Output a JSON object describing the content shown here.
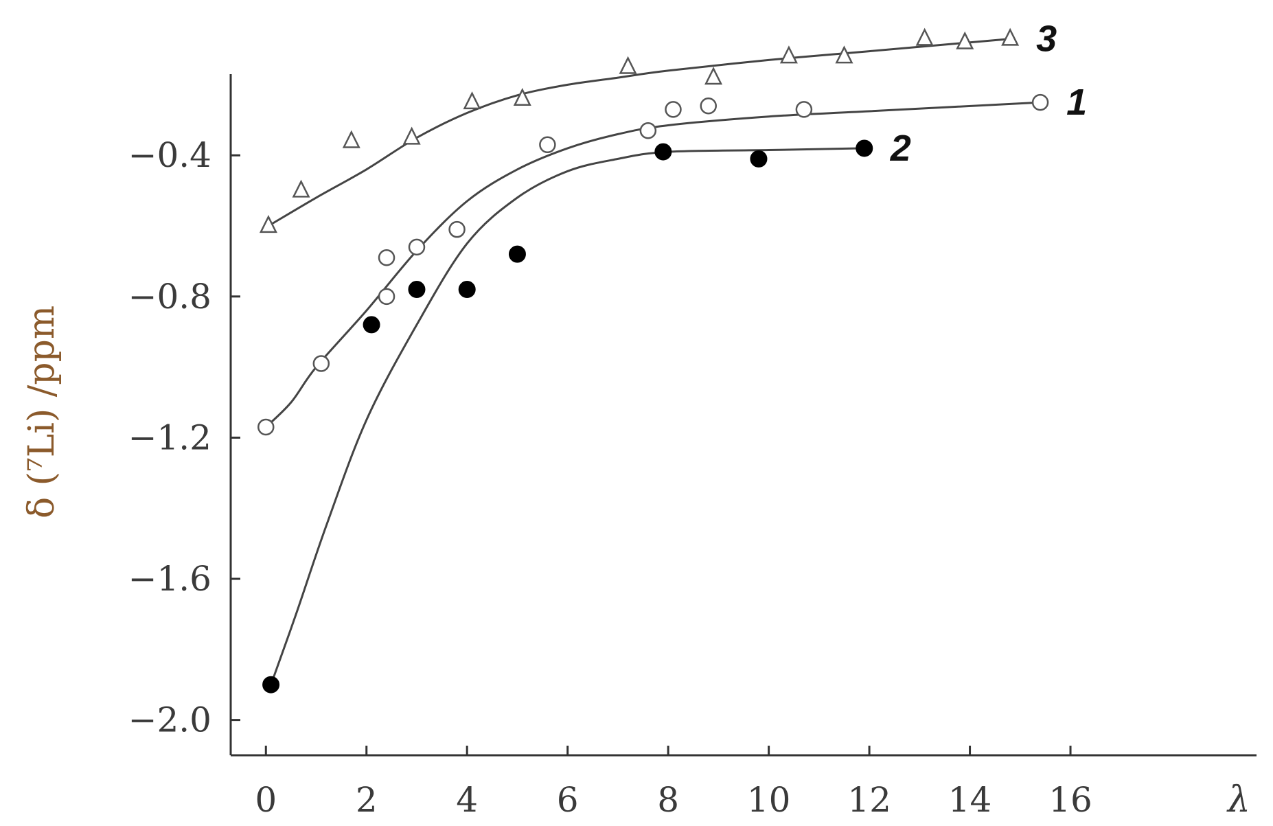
{
  "chart_data": {
    "type": "scatter",
    "xlabel": "λ",
    "ylabel": "δ (⁷Li) /ppm",
    "xlim": [
      -0.7,
      19.7
    ],
    "ylim": [
      -2.1,
      -0.17
    ],
    "xticks": [
      0,
      2,
      4,
      6,
      8,
      10,
      12,
      14,
      16
    ],
    "xtick_labels": [
      "0",
      "2",
      "4",
      "6",
      "8",
      "10",
      "12",
      "14",
      "16"
    ],
    "yticks": [
      -0.4,
      -0.8,
      -1.2,
      -1.6,
      -2.0
    ],
    "ytick_labels": [
      "−0.4",
      "−0.8",
      "−1.2",
      "−1.6",
      "−2.0"
    ],
    "grid": false,
    "series": [
      {
        "name": "1",
        "marker": "open-circle",
        "color": "#333333",
        "points": [
          {
            "x": 0.0,
            "y": -1.17
          },
          {
            "x": 1.1,
            "y": -0.99
          },
          {
            "x": 2.4,
            "y": -0.69
          },
          {
            "x": 2.4,
            "y": -0.8
          },
          {
            "x": 3.0,
            "y": -0.66
          },
          {
            "x": 3.8,
            "y": -0.61
          },
          {
            "x": 5.6,
            "y": -0.37
          },
          {
            "x": 7.6,
            "y": -0.33
          },
          {
            "x": 8.1,
            "y": -0.27
          },
          {
            "x": 8.8,
            "y": -0.26
          },
          {
            "x": 10.7,
            "y": -0.27
          },
          {
            "x": 15.4,
            "y": -0.25
          }
        ],
        "curve": [
          {
            "x": 0.0,
            "y": -1.17
          },
          {
            "x": 0.5,
            "y": -1.1
          },
          {
            "x": 1.0,
            "y": -1.0
          },
          {
            "x": 2.0,
            "y": -0.84
          },
          {
            "x": 3.0,
            "y": -0.67
          },
          {
            "x": 4.0,
            "y": -0.53
          },
          {
            "x": 5.0,
            "y": -0.44
          },
          {
            "x": 6.0,
            "y": -0.38
          },
          {
            "x": 7.0,
            "y": -0.34
          },
          {
            "x": 8.0,
            "y": -0.315
          },
          {
            "x": 10.0,
            "y": -0.29
          },
          {
            "x": 12.0,
            "y": -0.275
          },
          {
            "x": 15.4,
            "y": -0.25
          }
        ]
      },
      {
        "name": "2",
        "marker": "filled-circle",
        "color": "#111111",
        "points": [
          {
            "x": 0.1,
            "y": -1.9
          },
          {
            "x": 2.1,
            "y": -0.88
          },
          {
            "x": 3.0,
            "y": -0.78
          },
          {
            "x": 4.0,
            "y": -0.78
          },
          {
            "x": 5.0,
            "y": -0.68
          },
          {
            "x": 7.9,
            "y": -0.39
          },
          {
            "x": 9.8,
            "y": -0.41
          },
          {
            "x": 11.9,
            "y": -0.38
          }
        ],
        "curve": [
          {
            "x": 0.1,
            "y": -1.9
          },
          {
            "x": 0.6,
            "y": -1.7
          },
          {
            "x": 1.2,
            "y": -1.45
          },
          {
            "x": 2.0,
            "y": -1.15
          },
          {
            "x": 3.0,
            "y": -0.88
          },
          {
            "x": 4.0,
            "y": -0.65
          },
          {
            "x": 5.0,
            "y": -0.52
          },
          {
            "x": 6.0,
            "y": -0.445
          },
          {
            "x": 7.0,
            "y": -0.41
          },
          {
            "x": 8.0,
            "y": -0.39
          },
          {
            "x": 10.0,
            "y": -0.385
          },
          {
            "x": 11.9,
            "y": -0.38
          }
        ]
      },
      {
        "name": "3",
        "marker": "open-triangle",
        "color": "#333333",
        "points": [
          {
            "x": 0.05,
            "y": -0.6
          },
          {
            "x": 0.7,
            "y": -0.5
          },
          {
            "x": 1.7,
            "y": -0.36
          },
          {
            "x": 2.9,
            "y": -0.35
          },
          {
            "x": 4.1,
            "y": -0.25
          },
          {
            "x": 5.1,
            "y": -0.24
          },
          {
            "x": 7.2,
            "y": -0.15
          },
          {
            "x": 8.9,
            "y": -0.18
          },
          {
            "x": 10.4,
            "y": -0.12
          },
          {
            "x": 11.5,
            "y": -0.12
          },
          {
            "x": 13.1,
            "y": -0.07
          },
          {
            "x": 13.9,
            "y": -0.08
          },
          {
            "x": 14.8,
            "y": -0.07
          }
        ],
        "curve": [
          {
            "x": 0.05,
            "y": -0.6
          },
          {
            "x": 1.0,
            "y": -0.52
          },
          {
            "x": 2.0,
            "y": -0.44
          },
          {
            "x": 3.0,
            "y": -0.35
          },
          {
            "x": 4.0,
            "y": -0.28
          },
          {
            "x": 5.0,
            "y": -0.23
          },
          {
            "x": 6.0,
            "y": -0.2
          },
          {
            "x": 7.0,
            "y": -0.18
          },
          {
            "x": 8.0,
            "y": -0.16
          },
          {
            "x": 10.0,
            "y": -0.13
          },
          {
            "x": 12.0,
            "y": -0.105
          },
          {
            "x": 14.8,
            "y": -0.07
          }
        ]
      }
    ]
  }
}
